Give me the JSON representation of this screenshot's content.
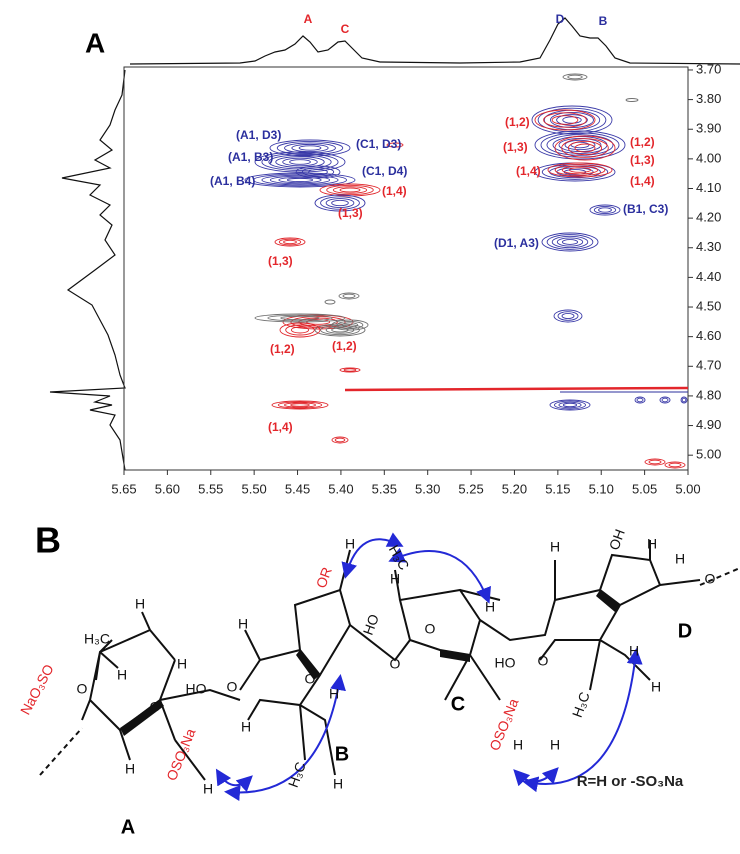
{
  "panel_a": {
    "label": "A"
  },
  "chart_data": {
    "type": "contour",
    "xlim": [
      5.65,
      5.0
    ],
    "ylim": [
      3.69,
      5.05
    ],
    "xticks": [
      {
        "value": 5.65,
        "label": "5.65"
      },
      {
        "value": 5.6,
        "label": "5.60"
      },
      {
        "value": 5.55,
        "label": "5.55"
      },
      {
        "value": 5.5,
        "label": "5.50"
      },
      {
        "value": 5.45,
        "label": "5.45"
      },
      {
        "value": 5.4,
        "label": "5.40"
      },
      {
        "value": 5.35,
        "label": "5.35"
      },
      {
        "value": 5.3,
        "label": "5.30"
      },
      {
        "value": 5.25,
        "label": "5.25"
      },
      {
        "value": 5.2,
        "label": "5.20"
      },
      {
        "value": 5.15,
        "label": "5.15"
      },
      {
        "value": 5.1,
        "label": "5.10"
      },
      {
        "value": 5.05,
        "label": "5.05"
      },
      {
        "value": 5.0,
        "label": "5.00"
      }
    ],
    "yticks": [
      {
        "value": 3.7,
        "label": "3.70"
      },
      {
        "value": 3.8,
        "label": "3.80"
      },
      {
        "value": 3.9,
        "label": "3.90"
      },
      {
        "value": 4.0,
        "label": "4.00"
      },
      {
        "value": 4.1,
        "label": "4.10"
      },
      {
        "value": 4.2,
        "label": "4.20"
      },
      {
        "value": 4.3,
        "label": "4.30"
      },
      {
        "value": 4.4,
        "label": "4.40"
      },
      {
        "value": 4.5,
        "label": "4.50"
      },
      {
        "value": 4.6,
        "label": "4.60"
      },
      {
        "value": 4.7,
        "label": "4.70"
      },
      {
        "value": 4.8,
        "label": "4.80"
      },
      {
        "value": 4.9,
        "label": "4.90"
      },
      {
        "value": 5.0,
        "label": "5.00"
      }
    ],
    "peak_labels": [
      {
        "text": "A",
        "color": "#e3262b"
      },
      {
        "text": "C",
        "color": "#e3262b"
      },
      {
        "text": "D",
        "color": "#2b2f9e"
      },
      {
        "text": "B",
        "color": "#2b2f9e"
      }
    ],
    "annotations": [
      {
        "text": "(A1, D3)",
        "color": "#2b2f9e"
      },
      {
        "text": "(A1, B3)",
        "color": "#2b2f9e"
      },
      {
        "text": "(A1, B4)",
        "color": "#2b2f9e"
      },
      {
        "text": "(C1, D3)",
        "color": "#2b2f9e"
      },
      {
        "text": "(C1, D4)",
        "color": "#2b2f9e"
      },
      {
        "text": "(1,4)",
        "color": "#e3262b"
      },
      {
        "text": "(1,3)",
        "color": "#e3262b"
      },
      {
        "text": "(1,3)",
        "color": "#e3262b"
      },
      {
        "text": "(1,2)",
        "color": "#e3262b"
      },
      {
        "text": "(1,2)",
        "color": "#e3262b"
      },
      {
        "text": "(1,4)",
        "color": "#e3262b"
      },
      {
        "text": "(1,2)",
        "color": "#e3262b"
      },
      {
        "text": "(1,3)",
        "color": "#e3262b"
      },
      {
        "text": "(1,4)",
        "color": "#e3262b"
      },
      {
        "text": "(1,2)",
        "color": "#e3262b"
      },
      {
        "text": "(1,3)",
        "color": "#e3262b"
      },
      {
        "text": "(1,4)",
        "color": "#e3262b"
      },
      {
        "text": "(B1, C3)",
        "color": "#2b2f9e"
      },
      {
        "text": "(D1, A3)",
        "color": "#2b2f9e"
      }
    ]
  },
  "panel_b": {
    "label": "B",
    "residues": [
      "A",
      "B",
      "C",
      "D"
    ],
    "substituents": [
      "NaO₃SO",
      "OSO₃Na",
      "OR",
      "OSO₃Na"
    ],
    "atoms": [
      "H₃C",
      "H",
      "H",
      "H",
      "O",
      "O",
      "H",
      "H",
      "HO",
      "O",
      "H",
      "H",
      "O",
      "H",
      "H₃C",
      "H",
      "H",
      "H₃C",
      "HO",
      "O",
      "H",
      "O",
      "H",
      "HO",
      "O",
      "H",
      "OH",
      "H",
      "O",
      "H",
      "H",
      "H₃C",
      "H",
      "H",
      "H"
    ],
    "note": "R=H or -SO₃Na"
  }
}
